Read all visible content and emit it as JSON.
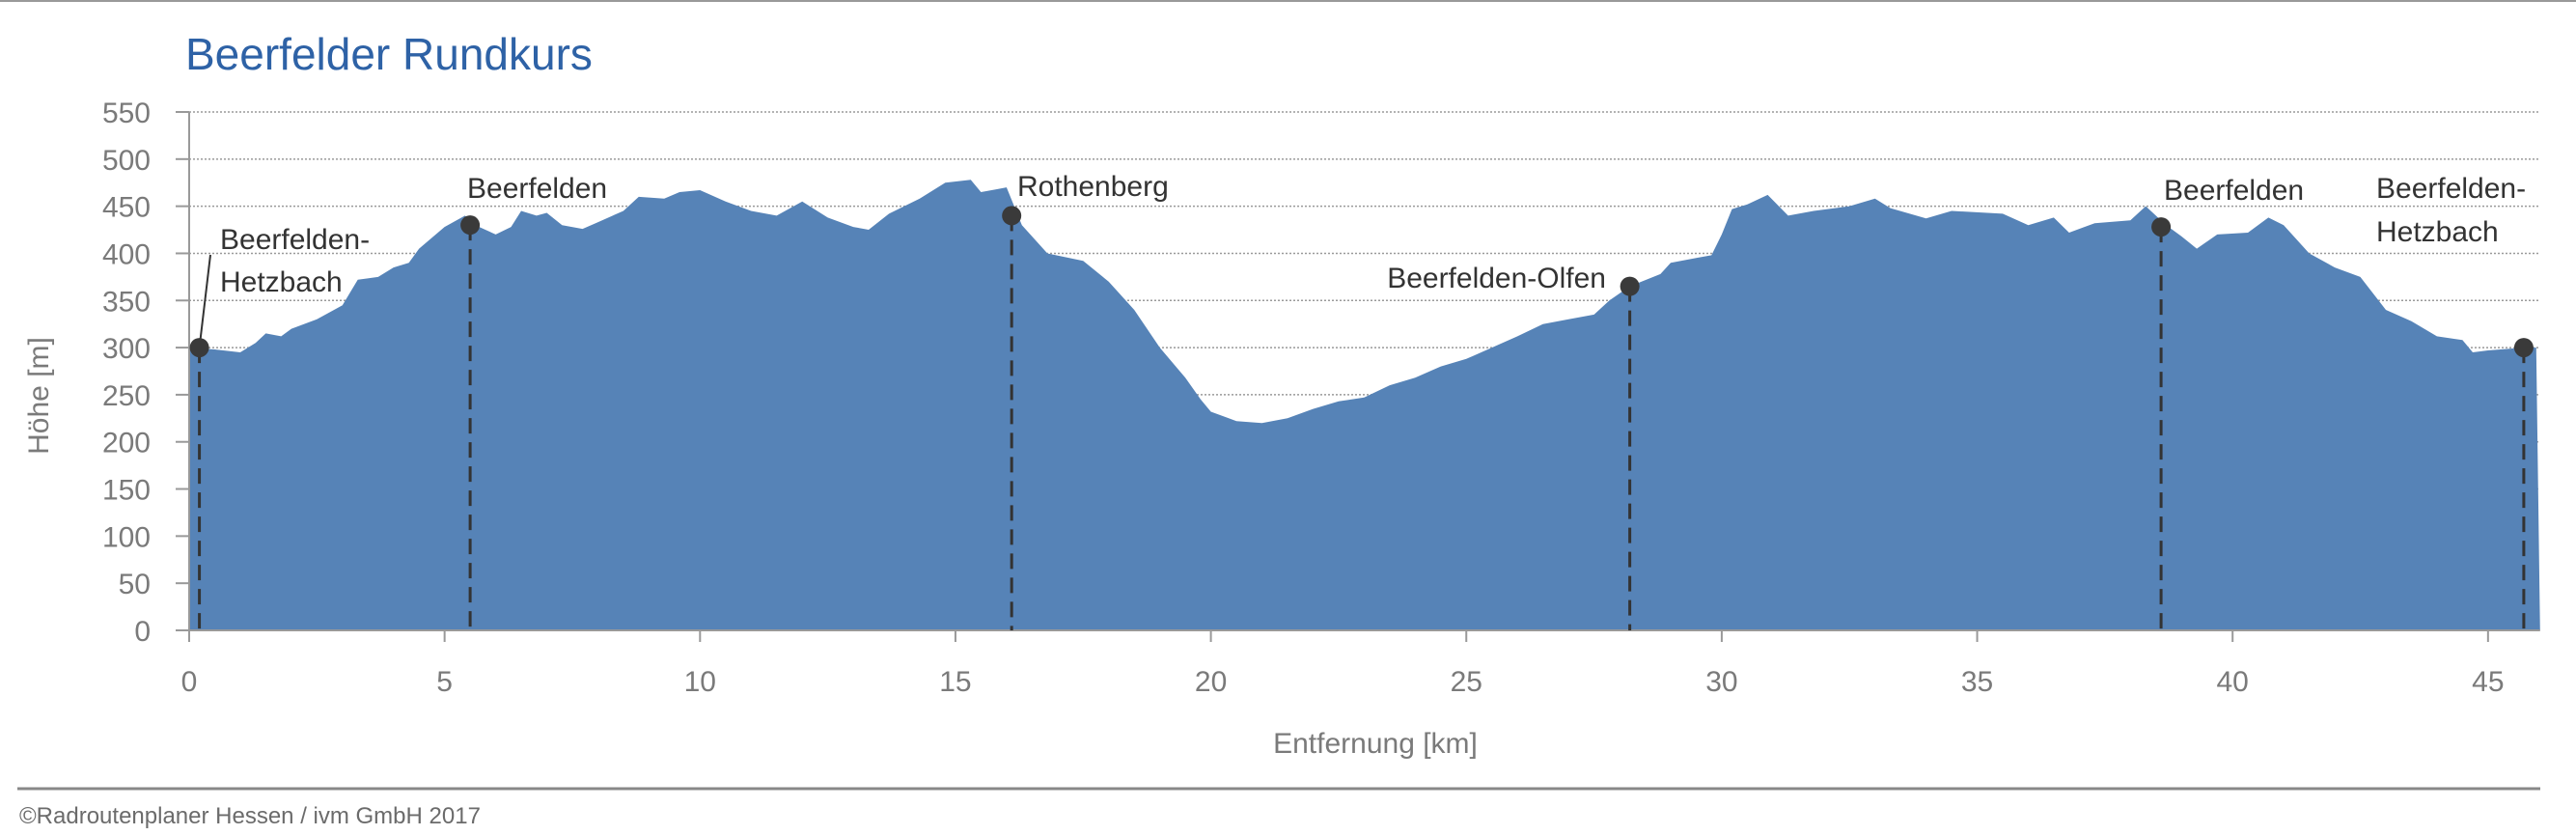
{
  "chart_data": {
    "type": "area",
    "title": "Beerfelder Rundkurs",
    "xlabel": "Entfernung [km]",
    "ylabel": "Höhe [m]",
    "xlim": [
      0,
      46
    ],
    "ylim": [
      0,
      550
    ],
    "xticks": [
      0,
      5,
      10,
      15,
      20,
      25,
      30,
      35,
      40,
      45
    ],
    "yticks": [
      0,
      50,
      100,
      150,
      200,
      250,
      300,
      350,
      400,
      450,
      500,
      550
    ],
    "grid": true,
    "fill_color": "#5683b7",
    "title_color": "#2e62a6",
    "profile": {
      "x": [
        0,
        0.5,
        1,
        1.3,
        1.5,
        1.8,
        2,
        2.5,
        3,
        3.3,
        3.7,
        4,
        4.3,
        4.5,
        5,
        5.4,
        5.6,
        6,
        6.3,
        6.5,
        6.8,
        7,
        7.3,
        7.7,
        8,
        8.5,
        8.8,
        9.3,
        9.6,
        10,
        10.5,
        11,
        11.5,
        12,
        12.5,
        13,
        13.3,
        13.7,
        14.3,
        14.8,
        15.3,
        15.5,
        15.8,
        16,
        16.3,
        16.8,
        17.5,
        18,
        18.5,
        19,
        19.5,
        19.8,
        20,
        20.5,
        21,
        21.5,
        22,
        22.5,
        23,
        23.5,
        24,
        24.5,
        25,
        25.5,
        26,
        26.5,
        27,
        27.5,
        27.8,
        28.2,
        28.8,
        29,
        29.5,
        29.8,
        30,
        30.2,
        30.5,
        30.9,
        31.3,
        31.8,
        32.5,
        33,
        33.3,
        34,
        34.5,
        35.5,
        36,
        36.5,
        36.8,
        37.3,
        38,
        38.3,
        38.7,
        39,
        39.3,
        39.7,
        40.3,
        40.7,
        41,
        41.5,
        42,
        42.5,
        43,
        43.5,
        44,
        44.5,
        44.7,
        45,
        45.7,
        45.9
      ],
      "y": [
        300,
        298,
        295,
        305,
        315,
        312,
        320,
        330,
        345,
        372,
        375,
        385,
        390,
        405,
        428,
        440,
        430,
        420,
        428,
        445,
        440,
        443,
        430,
        426,
        433,
        445,
        460,
        458,
        465,
        467,
        455,
        445,
        440,
        455,
        438,
        428,
        425,
        442,
        458,
        475,
        478,
        465,
        468,
        470,
        430,
        400,
        392,
        370,
        340,
        300,
        268,
        245,
        232,
        222,
        220,
        225,
        235,
        243,
        247,
        260,
        268,
        280,
        288,
        300,
        312,
        325,
        330,
        335,
        350,
        365,
        378,
        390,
        395,
        398,
        420,
        447,
        452,
        462,
        440,
        445,
        450,
        458,
        448,
        437,
        445,
        442,
        430,
        438,
        422,
        432,
        435,
        450,
        430,
        418,
        405,
        420,
        422,
        438,
        430,
        400,
        385,
        375,
        340,
        328,
        312,
        308,
        295,
        297,
        300,
        300
      ]
    },
    "markers": [
      {
        "km": 0.2,
        "elevation": 300,
        "label": [
          "Beerfelden-",
          "Hetzbach"
        ]
      },
      {
        "km": 5.5,
        "elevation": 430,
        "label": [
          "Beerfelden"
        ]
      },
      {
        "km": 16.1,
        "elevation": 440,
        "label": [
          "Rothenberg"
        ]
      },
      {
        "km": 28.2,
        "elevation": 365,
        "label": [
          "Beerfelden-Olfen"
        ]
      },
      {
        "km": 38.6,
        "elevation": 428,
        "label": [
          "Beerfelden"
        ]
      },
      {
        "km": 45.7,
        "elevation": 300,
        "label": [
          "Beerfelden-",
          "Hetzbach"
        ]
      }
    ]
  },
  "footer": "©Radroutenplaner Hessen / ivm GmbH 2017"
}
